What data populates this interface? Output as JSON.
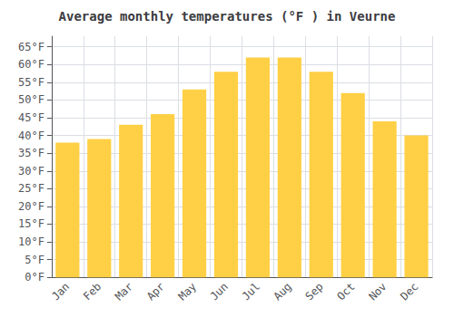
{
  "chart_data": {
    "type": "bar",
    "title": "Average monthly temperatures (°F ) in Veurne",
    "categories": [
      "Jan",
      "Feb",
      "Mar",
      "Apr",
      "May",
      "Jun",
      "Jul",
      "Aug",
      "Sep",
      "Oct",
      "Nov",
      "Dec"
    ],
    "values": [
      38,
      39,
      43,
      46,
      53,
      58,
      62,
      62,
      58,
      52,
      44,
      40
    ],
    "color": "#FFD045",
    "ylim": [
      0,
      68
    ],
    "yticks": [
      {
        "value": 0,
        "label": "0°F"
      },
      {
        "value": 5,
        "label": "5°F"
      },
      {
        "value": 10,
        "label": "10°F"
      },
      {
        "value": 15,
        "label": "15°F"
      },
      {
        "value": 20,
        "label": "20°F"
      },
      {
        "value": 25,
        "label": "25°F"
      },
      {
        "value": 30,
        "label": "30°F"
      },
      {
        "value": 35,
        "label": "35°F"
      },
      {
        "value": 40,
        "label": "40°F"
      },
      {
        "value": 45,
        "label": "45°F"
      },
      {
        "value": 50,
        "label": "50°F"
      },
      {
        "value": 55,
        "label": "55°F"
      },
      {
        "value": 60,
        "label": "60°F"
      },
      {
        "value": 65,
        "label": "65°F"
      }
    ],
    "grid": true
  }
}
